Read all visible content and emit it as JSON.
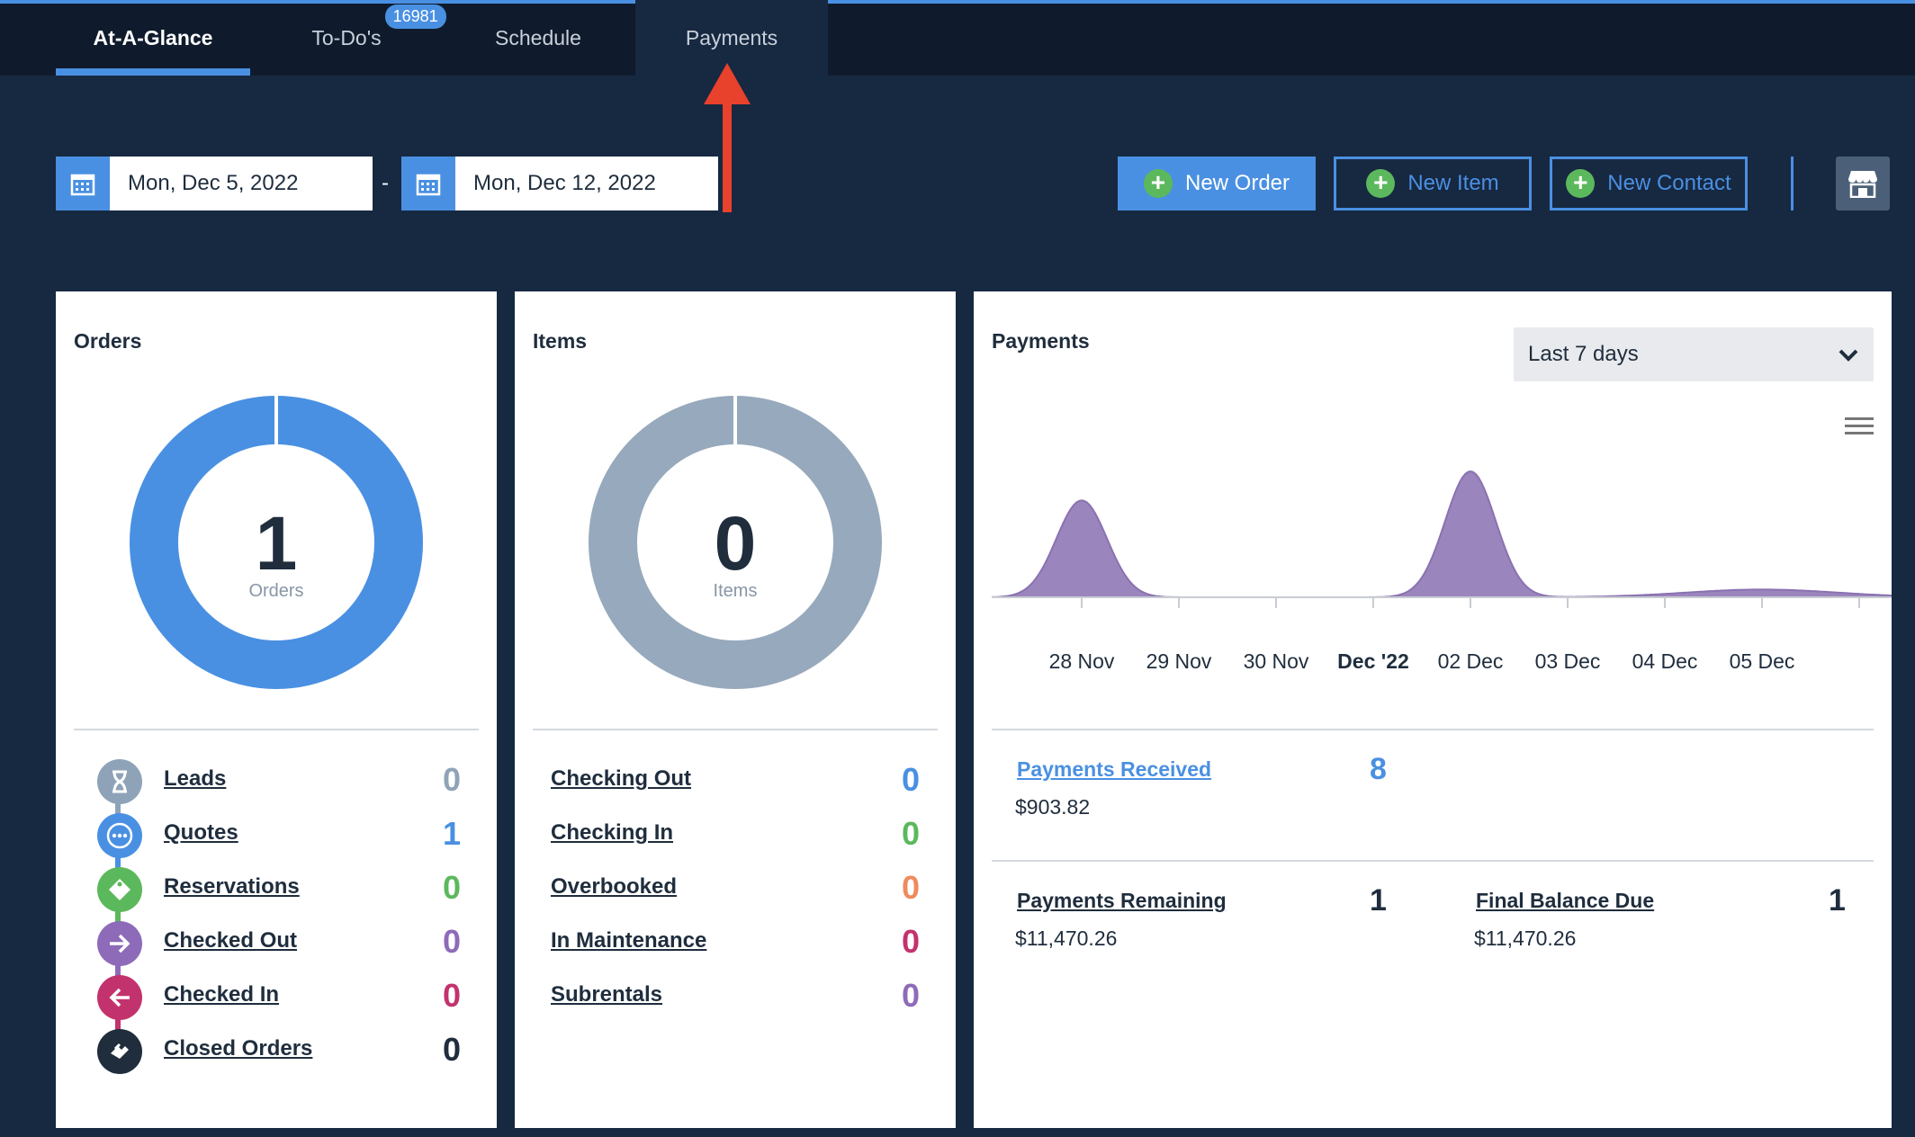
{
  "tabs": [
    {
      "label": "At-A-Glance"
    },
    {
      "label": "To-Do's",
      "badge": "16981"
    },
    {
      "label": "Schedule"
    },
    {
      "label": "Payments"
    }
  ],
  "date_range": {
    "start": "Mon, Dec 5, 2022",
    "separator": "-",
    "end": "Mon, Dec 12, 2022"
  },
  "actions": {
    "new_order": "New Order",
    "new_item": "New Item",
    "new_contact": "New Contact"
  },
  "orders": {
    "title": "Orders",
    "total": "1",
    "total_label": "Orders",
    "rows": [
      {
        "label": "Leads",
        "count": "0",
        "color": "#8fa3b8",
        "icon": "hourglass-icon"
      },
      {
        "label": "Quotes",
        "count": "1",
        "color": "#4a90e2",
        "icon": "ellipsis-icon"
      },
      {
        "label": "Reservations",
        "count": "0",
        "color": "#5cb85c",
        "icon": "tag-icon"
      },
      {
        "label": "Checked Out",
        "count": "0",
        "color": "#8e6bb8",
        "icon": "arrow-right-icon"
      },
      {
        "label": "Checked In",
        "count": "0",
        "color": "#c2336e",
        "icon": "arrow-left-icon"
      },
      {
        "label": "Closed Orders",
        "count": "0",
        "color": "#1f2d3d",
        "icon": "handshake-icon"
      }
    ]
  },
  "items": {
    "title": "Items",
    "total": "0",
    "total_label": "Items",
    "rows": [
      {
        "label": "Checking Out",
        "count": "0",
        "color": "#4a90e2"
      },
      {
        "label": "Checking In",
        "count": "0",
        "color": "#5cb85c"
      },
      {
        "label": "Overbooked",
        "count": "0",
        "color": "#f08a5d"
      },
      {
        "label": "In Maintenance",
        "count": "0",
        "color": "#c2336e"
      },
      {
        "label": "Subrentals",
        "count": "0",
        "color": "#8e6bb8"
      }
    ]
  },
  "payments": {
    "title": "Payments",
    "period": "Last 7 days",
    "received": {
      "label": "Payments Received",
      "count": "8",
      "amount": "$903.82"
    },
    "remaining": {
      "label": "Payments Remaining",
      "count": "1",
      "amount": "$11,470.26"
    },
    "final_balance": {
      "label": "Final Balance Due",
      "count": "1",
      "amount": "$11,470.26"
    }
  },
  "chart_data": {
    "type": "area",
    "x": [
      "28 Nov",
      "29 Nov",
      "30 Nov",
      "Dec '22",
      "02 Dec",
      "03 Dec",
      "04 Dec",
      "05 Dec"
    ],
    "series": [
      {
        "values": [
          1.0,
          0,
          0,
          0,
          1.3,
          0,
          0,
          0.08
        ]
      }
    ],
    "color": "#9b85bd"
  }
}
